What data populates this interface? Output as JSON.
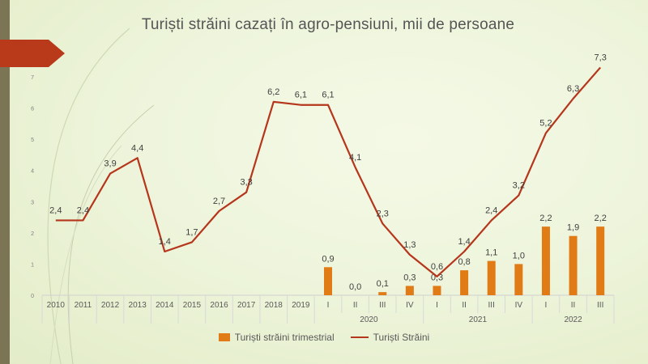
{
  "title": "Turiști străini cazați în agro-pensiuni, mii de persoane",
  "colors": {
    "bar": "#e07b16",
    "line": "#b5361c",
    "accent": "#b83a1a",
    "band": "#7b7455"
  },
  "chart_data": {
    "type": "bar+line",
    "title": "Turiști străini cazați în agro-pensiuni, mii de persoane",
    "categories": [
      "2010",
      "2011",
      "2012",
      "2013",
      "2014",
      "2015",
      "2016",
      "2017",
      "2018",
      "2019",
      "I",
      "II",
      "III",
      "IV",
      "I",
      "II",
      "III",
      "IV",
      "I",
      "II",
      "III"
    ],
    "category_groups": [
      {
        "label": "2020",
        "start": 10,
        "end": 13
      },
      {
        "label": "2021",
        "start": 14,
        "end": 17
      },
      {
        "label": "2022",
        "start": 18,
        "end": 20
      }
    ],
    "ylim": [
      0,
      7
    ],
    "yticks": [
      0,
      1,
      2,
      3,
      4,
      5,
      6,
      7
    ],
    "series": [
      {
        "name": "Turiști străini trimestrial",
        "kind": "bar",
        "values": [
          null,
          null,
          null,
          null,
          null,
          null,
          null,
          null,
          null,
          null,
          0.9,
          0.0,
          0.1,
          0.3,
          0.3,
          0.8,
          1.1,
          1.0,
          2.2,
          1.9,
          2.2
        ],
        "labels": [
          "",
          "",
          "",
          "",
          "",
          "",
          "",
          "",
          "",
          "",
          "0,9",
          "0,0",
          "0,1",
          "0,3",
          "0,3",
          "0,8",
          "1,1",
          "1,0",
          "2,2",
          "1,9",
          "2,2"
        ]
      },
      {
        "name": "Turiști Străini",
        "kind": "line",
        "values": [
          2.4,
          2.4,
          3.9,
          4.4,
          1.4,
          1.7,
          2.7,
          3.3,
          6.2,
          6.1,
          6.1,
          4.1,
          2.3,
          1.3,
          0.6,
          1.4,
          2.4,
          3.2,
          5.2,
          6.3,
          7.3
        ],
        "labels": [
          "2,4",
          "2,4",
          "3,9",
          "4,4",
          "1,4",
          "1,7",
          "2,7",
          "3,3",
          "6,2",
          "6,1",
          "6,1",
          "4,1",
          "2,3",
          "1,3",
          "0,6",
          "1,4",
          "2,4",
          "3,2",
          "5,2",
          "6,3",
          "7,3"
        ]
      }
    ],
    "legend": "bottom"
  }
}
